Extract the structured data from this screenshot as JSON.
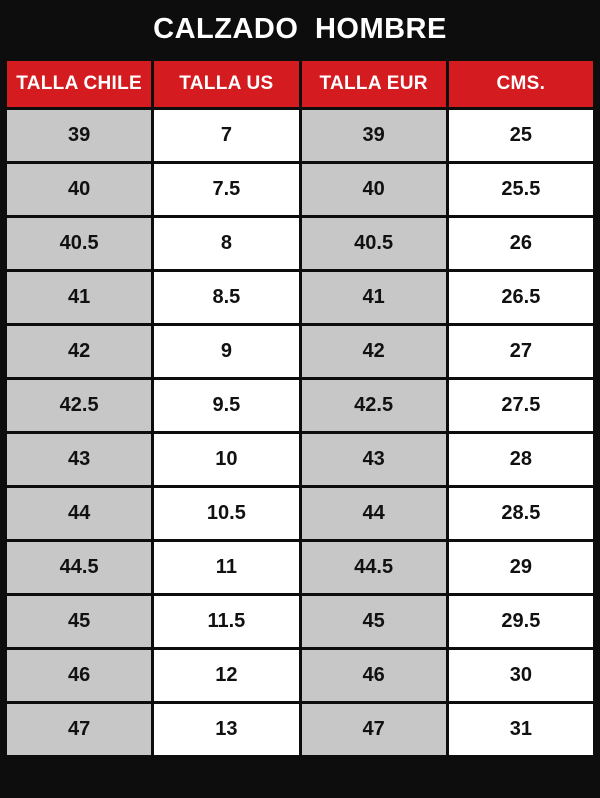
{
  "chart_data": {
    "type": "table",
    "title": "CALZADO HOMBRE",
    "columns": [
      "TALLA CHILE",
      "TALLA US",
      "TALLA EUR",
      "CMS."
    ],
    "rows": [
      [
        "39",
        "7",
        "39",
        "25"
      ],
      [
        "40",
        "7.5",
        "40",
        "25.5"
      ],
      [
        "40.5",
        "8",
        "40.5",
        "26"
      ],
      [
        "41",
        "8.5",
        "41",
        "26.5"
      ],
      [
        "42",
        "9",
        "42",
        "27"
      ],
      [
        "42.5",
        "9.5",
        "42.5",
        "27.5"
      ],
      [
        "43",
        "10",
        "43",
        "28"
      ],
      [
        "44",
        "10.5",
        "44",
        "28.5"
      ],
      [
        "44.5",
        "11",
        "44.5",
        "29"
      ],
      [
        "45",
        "11.5",
        "45",
        "29.5"
      ],
      [
        "46",
        "12",
        "46",
        "30"
      ],
      [
        "47",
        "13",
        "47",
        "31"
      ]
    ]
  },
  "colors": {
    "header_red": "#d41b20",
    "cell_gray": "#c7c7c7",
    "cell_white": "#ffffff",
    "background_black": "#0d0d0d",
    "border_black": "#0d0d0d",
    "header_text": "#ffffff",
    "cell_text": "#111111"
  }
}
